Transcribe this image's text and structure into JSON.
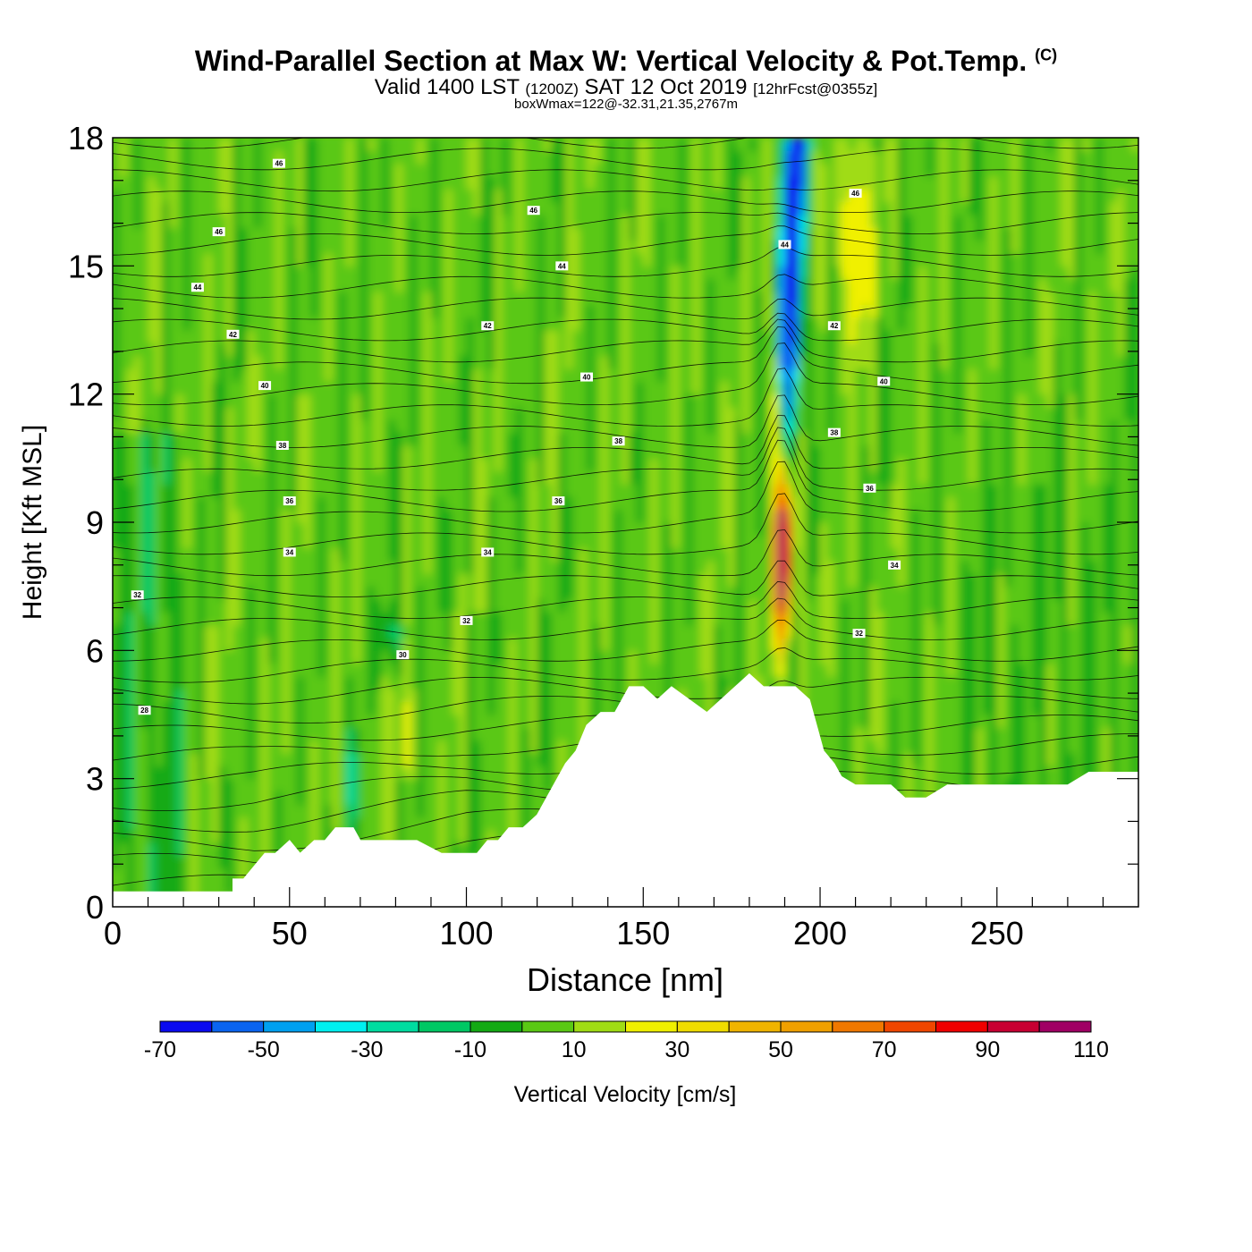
{
  "chart_data": {
    "type": "heatmap",
    "title": "Wind-Parallel Section at Max W: Vertical Velocity & Pot.Temp.",
    "copyright": "(C)",
    "subtitle": {
      "valid": "Valid 1400 LST",
      "utc": "(1200Z)",
      "date": "SAT 12 Oct 2019",
      "forecast": "[12hrFcst@0355z]"
    },
    "subtitle2": "boxWmax=122@-32.31,21.35,2767m",
    "xlabel": "Distance [nm]",
    "ylabel": "Height [Kft MSL]",
    "xlim": [
      0,
      290
    ],
    "ylim": [
      0,
      18
    ],
    "x_ticks": [
      "0",
      "50",
      "100",
      "150",
      "200",
      "250"
    ],
    "x_tick_values": [
      0,
      50,
      100,
      150,
      200,
      250
    ],
    "y_ticks": [
      "0",
      "3",
      "6",
      "9",
      "12",
      "15",
      "18"
    ],
    "y_tick_values": [
      0,
      3,
      6,
      9,
      12,
      15,
      18
    ],
    "colorbar": {
      "label": "Vertical Velocity [cm/s]",
      "boundaries": [
        -70,
        -60,
        -50,
        -40,
        -30,
        -20,
        -10,
        0,
        10,
        20,
        30,
        40,
        50,
        60,
        70,
        80,
        90,
        100,
        110
      ],
      "tick_labels": [
        "-70",
        "-50",
        "-30",
        "-10",
        "10",
        "30",
        "50",
        "70",
        "90",
        "110"
      ],
      "tick_values": [
        -70,
        -50,
        -30,
        -10,
        10,
        30,
        50,
        70,
        90,
        110
      ],
      "colors": [
        "#0a0af0",
        "#0a64f0",
        "#00a0f0",
        "#00f0f0",
        "#00dca0",
        "#00c864",
        "#14aa14",
        "#5ac814",
        "#a0dc14",
        "#f0f000",
        "#f0dc00",
        "#f0b400",
        "#f0a000",
        "#f07800",
        "#f04600",
        "#f00000",
        "#c80032",
        "#a00064"
      ]
    },
    "contour_labels": [
      {
        "text": "46",
        "x": 47,
        "y": 17.4
      },
      {
        "text": "46",
        "x": 30,
        "y": 15.8
      },
      {
        "text": "44",
        "x": 24,
        "y": 14.5
      },
      {
        "text": "42",
        "x": 34,
        "y": 13.4
      },
      {
        "text": "40",
        "x": 43,
        "y": 12.2
      },
      {
        "text": "38",
        "x": 48,
        "y": 10.8
      },
      {
        "text": "36",
        "x": 50,
        "y": 9.5
      },
      {
        "text": "34",
        "x": 50,
        "y": 8.3
      },
      {
        "text": "32",
        "x": 7,
        "y": 7.3
      },
      {
        "text": "28",
        "x": 9,
        "y": 4.6
      },
      {
        "text": "46",
        "x": 119,
        "y": 16.3
      },
      {
        "text": "44",
        "x": 127,
        "y": 15.0
      },
      {
        "text": "42",
        "x": 106,
        "y": 13.6
      },
      {
        "text": "40",
        "x": 134,
        "y": 12.4
      },
      {
        "text": "38",
        "x": 143,
        "y": 10.9
      },
      {
        "text": "36",
        "x": 126,
        "y": 9.5
      },
      {
        "text": "34",
        "x": 106,
        "y": 8.3
      },
      {
        "text": "32",
        "x": 100,
        "y": 6.7
      },
      {
        "text": "30",
        "x": 82,
        "y": 5.9
      },
      {
        "text": "46",
        "x": 210,
        "y": 16.7
      },
      {
        "text": "44",
        "x": 190,
        "y": 15.5
      },
      {
        "text": "42",
        "x": 204,
        "y": 13.6
      },
      {
        "text": "40",
        "x": 218,
        "y": 12.3
      },
      {
        "text": "38",
        "x": 204,
        "y": 11.1
      },
      {
        "text": "36",
        "x": 214,
        "y": 9.8
      },
      {
        "text": "34",
        "x": 221,
        "y": 8.0
      },
      {
        "text": "32",
        "x": 211,
        "y": 6.4
      }
    ],
    "terrain": {
      "units": "distance nm / height kft",
      "x": [
        0,
        34,
        34,
        37,
        40,
        43,
        46,
        50,
        53,
        57,
        60,
        63,
        65,
        68,
        70,
        74,
        80,
        86,
        93,
        100,
        103,
        106,
        109,
        112,
        116,
        120,
        124,
        126,
        128,
        131,
        134,
        138,
        142,
        146,
        150,
        154,
        158,
        163,
        168,
        172,
        176,
        180,
        184,
        188,
        193,
        197,
        199,
        201,
        204,
        206,
        210,
        215,
        220,
        224,
        230,
        236,
        240,
        250,
        260,
        270,
        276,
        290
      ],
      "y": [
        0.35,
        0.35,
        0.65,
        0.65,
        0.95,
        1.25,
        1.25,
        1.55,
        1.25,
        1.55,
        1.55,
        1.85,
        1.85,
        1.85,
        1.55,
        1.55,
        1.55,
        1.55,
        1.25,
        1.25,
        1.25,
        1.55,
        1.55,
        1.85,
        1.85,
        2.15,
        2.75,
        3.05,
        3.35,
        3.65,
        4.25,
        4.55,
        4.55,
        5.15,
        5.15,
        4.85,
        5.15,
        4.85,
        4.55,
        4.85,
        5.15,
        5.45,
        5.15,
        5.15,
        5.15,
        4.85,
        4.25,
        3.65,
        3.35,
        3.05,
        2.85,
        2.85,
        2.85,
        2.55,
        2.55,
        2.85,
        2.85,
        2.85,
        2.85,
        2.85,
        3.15,
        3.15
      ]
    }
  }
}
